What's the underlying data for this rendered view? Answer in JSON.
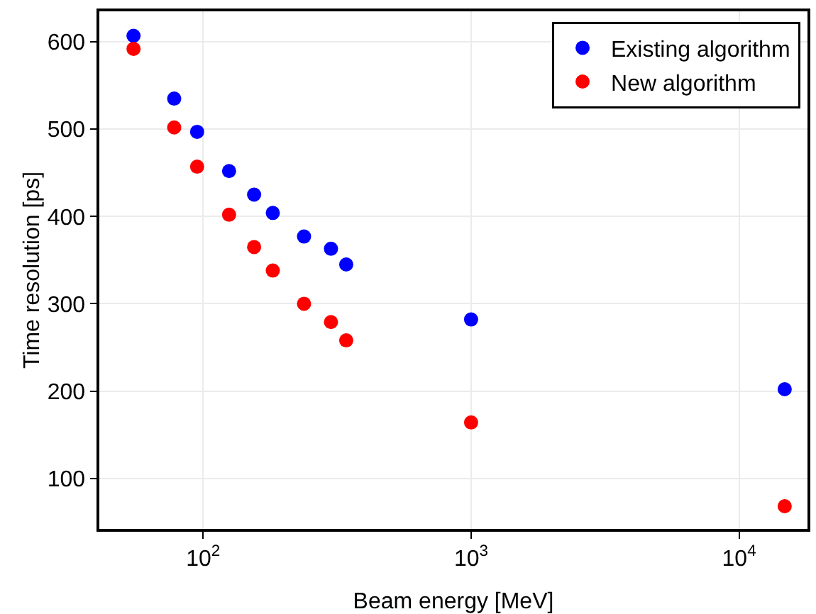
{
  "chart_data": {
    "type": "scatter",
    "xlabel": "Beam energy [MeV]",
    "ylabel": "Time resolution [ps]",
    "log": "x",
    "xlim": [
      41,
      18000
    ],
    "xticks": [
      {
        "value": 100,
        "label": "10$^{2}$"
      },
      {
        "value": 1000,
        "label": "10$^{3}$"
      },
      {
        "value": 10000,
        "label": "10$^{4}$"
      }
    ],
    "ylim": [
      42,
      635
    ],
    "yticks": [
      100,
      200,
      300,
      400,
      500,
      600
    ],
    "grid": true,
    "legend": "top right",
    "marker": "circle",
    "series": [
      {
        "name": "Existing algorithm",
        "color": "#0000ff",
        "x": [
          55,
          78,
          95,
          125,
          155,
          182,
          238,
          300,
          342,
          1000,
          14800
        ],
        "values": [
          607,
          535,
          497,
          452,
          425,
          404,
          377,
          363,
          345,
          282,
          202
        ]
      },
      {
        "name": "New algorithm",
        "color": "#ff0000",
        "x": [
          55,
          78,
          95,
          125,
          155,
          182,
          238,
          300,
          342,
          1000,
          14800
        ],
        "values": [
          592,
          502,
          457,
          402,
          365,
          338,
          300,
          279,
          258,
          164,
          68
        ]
      }
    ]
  }
}
